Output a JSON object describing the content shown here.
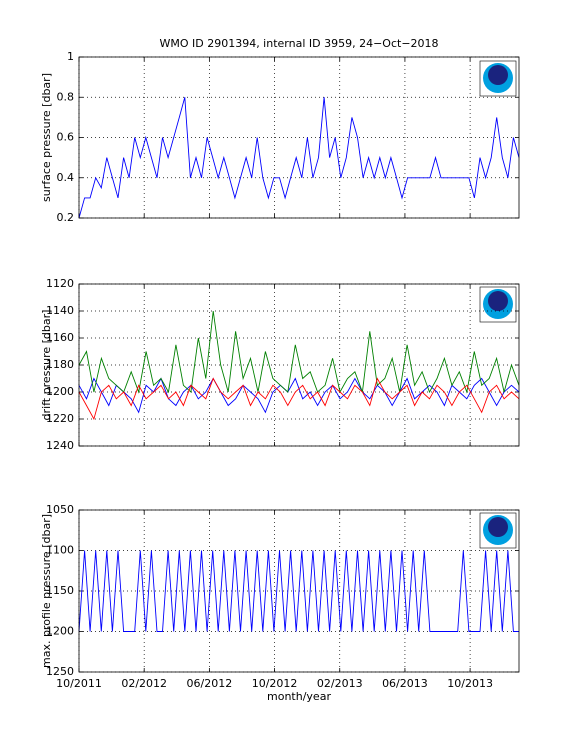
{
  "chart_data": [
    {
      "type": "line",
      "title": "WMO ID 2901394, internal ID 3959, 24−Oct−2018",
      "y_label": "surface pressure [dbar]",
      "grid": true,
      "xlim": [
        0,
        27
      ],
      "xticks": [
        0,
        4,
        8,
        12,
        16,
        20,
        24
      ],
      "ylim": [
        0.2,
        1
      ],
      "yticks": [
        0.2,
        0.4,
        0.6,
        0.8,
        1
      ],
      "series": [
        {
          "color": "#0000ff",
          "values": [
            0.2,
            0.3,
            0.3,
            0.4,
            0.35,
            0.5,
            0.4,
            0.3,
            0.5,
            0.4,
            0.6,
            0.5,
            0.6,
            0.5,
            0.4,
            0.6,
            0.5,
            0.6,
            0.7,
            0.8,
            0.4,
            0.5,
            0.4,
            0.6,
            0.5,
            0.4,
            0.5,
            0.4,
            0.3,
            0.4,
            0.5,
            0.4,
            0.6,
            0.4,
            0.3,
            0.4,
            0.4,
            0.3,
            0.4,
            0.5,
            0.4,
            0.6,
            0.4,
            0.5,
            0.8,
            0.5,
            0.6,
            0.4,
            0.5,
            0.7,
            0.6,
            0.4,
            0.5,
            0.4,
            0.5,
            0.4,
            0.5,
            0.4,
            0.3,
            0.4,
            0.4,
            0.4,
            0.4,
            0.4,
            0.5,
            0.4,
            0.4,
            0.4,
            0.4,
            0.4,
            0.4,
            0.3,
            0.5,
            0.4,
            0.5,
            0.7,
            0.5,
            0.4,
            0.6,
            0.5
          ]
        }
      ]
    },
    {
      "type": "line",
      "y_label": "drift pressure [dbar]",
      "grid": true,
      "xlim": [
        0,
        27
      ],
      "xticks": [
        0,
        4,
        8,
        12,
        16,
        20,
        24
      ],
      "ylim": [
        1240,
        1120
      ],
      "yticks": [
        1120,
        1140,
        1160,
        1180,
        1200,
        1220,
        1240
      ],
      "series": [
        {
          "color": "#0000ff",
          "values": [
            1195,
            1205,
            1190,
            1200,
            1210,
            1195,
            1200,
            1205,
            1215,
            1195,
            1200,
            1190,
            1205,
            1210,
            1200,
            1195,
            1205,
            1200,
            1190,
            1200,
            1210,
            1205,
            1195,
            1200,
            1205,
            1215,
            1200,
            1195,
            1200,
            1190,
            1205,
            1200,
            1210,
            1200,
            1195,
            1205,
            1200,
            1190,
            1200,
            1205,
            1195,
            1200,
            1210,
            1200,
            1190,
            1205,
            1200,
            1195,
            1200,
            1210,
            1195,
            1200,
            1205,
            1195,
            1190,
            1200,
            1210,
            1200,
            1195,
            1200
          ]
        },
        {
          "color": "#008000",
          "values": [
            1180,
            1170,
            1200,
            1175,
            1190,
            1195,
            1200,
            1185,
            1200,
            1170,
            1195,
            1190,
            1200,
            1165,
            1195,
            1200,
            1160,
            1190,
            1140,
            1180,
            1200,
            1155,
            1190,
            1175,
            1200,
            1170,
            1190,
            1195,
            1200,
            1165,
            1190,
            1185,
            1200,
            1195,
            1175,
            1200,
            1190,
            1185,
            1200,
            1155,
            1195,
            1190,
            1175,
            1200,
            1165,
            1195,
            1185,
            1200,
            1190,
            1175,
            1195,
            1185,
            1200,
            1170,
            1195,
            1190,
            1175,
            1200,
            1180,
            1195
          ]
        },
        {
          "color": "#ff0000",
          "values": [
            1200,
            1210,
            1220,
            1200,
            1195,
            1205,
            1200,
            1210,
            1195,
            1205,
            1200,
            1195,
            1205,
            1200,
            1210,
            1195,
            1200,
            1205,
            1190,
            1200,
            1205,
            1200,
            1195,
            1210,
            1200,
            1205,
            1195,
            1200,
            1210,
            1200,
            1195,
            1205,
            1200,
            1210,
            1195,
            1200,
            1205,
            1195,
            1200,
            1210,
            1190,
            1200,
            1205,
            1200,
            1195,
            1210,
            1200,
            1205,
            1195,
            1200,
            1210,
            1200,
            1195,
            1205,
            1215,
            1200,
            1195,
            1205,
            1200,
            1205
          ]
        }
      ]
    },
    {
      "type": "line",
      "y_label": "max. profile pressure [dbar]",
      "x_label": "month/year",
      "grid": true,
      "xlim": [
        0,
        27
      ],
      "xticks": [
        {
          "value": 0,
          "label": "10/2011"
        },
        {
          "value": 4,
          "label": "02/2012"
        },
        {
          "value": 8,
          "label": "06/2012"
        },
        {
          "value": 12,
          "label": "10/2012"
        },
        {
          "value": 16,
          "label": "02/2013"
        },
        {
          "value": 20,
          "label": "06/2013"
        },
        {
          "value": 24,
          "label": "10/2013"
        }
      ],
      "ylim": [
        1250,
        1050
      ],
      "yticks": [
        1050,
        1100,
        1150,
        1200,
        1250
      ],
      "series": [
        {
          "color": "#0000ff",
          "values": [
            1200,
            1100,
            1200,
            1100,
            1200,
            1100,
            1200,
            1100,
            1200,
            1200,
            1200,
            1100,
            1200,
            1100,
            1200,
            1200,
            1100,
            1200,
            1100,
            1200,
            1100,
            1200,
            1100,
            1200,
            1100,
            1200,
            1100,
            1200,
            1100,
            1200,
            1100,
            1200,
            1100,
            1200,
            1100,
            1200,
            1100,
            1200,
            1100,
            1200,
            1100,
            1200,
            1100,
            1200,
            1100,
            1200,
            1100,
            1200,
            1100,
            1200,
            1100,
            1200,
            1100,
            1200,
            1100,
            1200,
            1100,
            1200,
            1100,
            1200,
            1100,
            1200,
            1100,
            1200,
            1200,
            1200,
            1200,
            1200,
            1200,
            1100,
            1200,
            1200,
            1200,
            1100,
            1200,
            1100,
            1200,
            1100,
            1200,
            1200
          ]
        }
      ]
    }
  ]
}
